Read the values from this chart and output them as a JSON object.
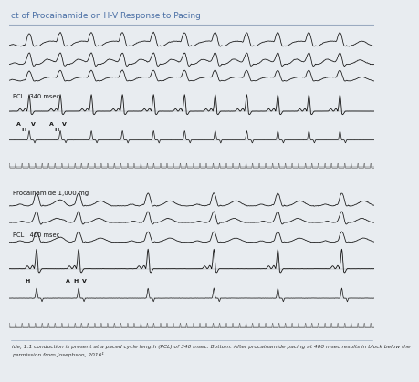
{
  "title": "ct of Procainamide on H-V Response to Pacing",
  "title_color": "#4a6fa5",
  "title_fontsize": 6.5,
  "bg_color": "#e8ecf0",
  "panel_bg": "#f5f5f5",
  "line_color": "#111111",
  "caption": "ide, 1:1 conduction is present at a paced cycle length (PCL) of 340 msec. Bottom: After procainamide pacing at 400 msec results in block below the\npermission from Josephson, 2016¹",
  "caption_fontsize": 4.2,
  "top_label_pcl": "PCL   340 msec",
  "bottom_label_pcl": "PCL   400 msec",
  "bottom_label_drug": "Procainamide 1,000 mg",
  "divider_color": "#9aaac0",
  "tick_color": "#777777"
}
